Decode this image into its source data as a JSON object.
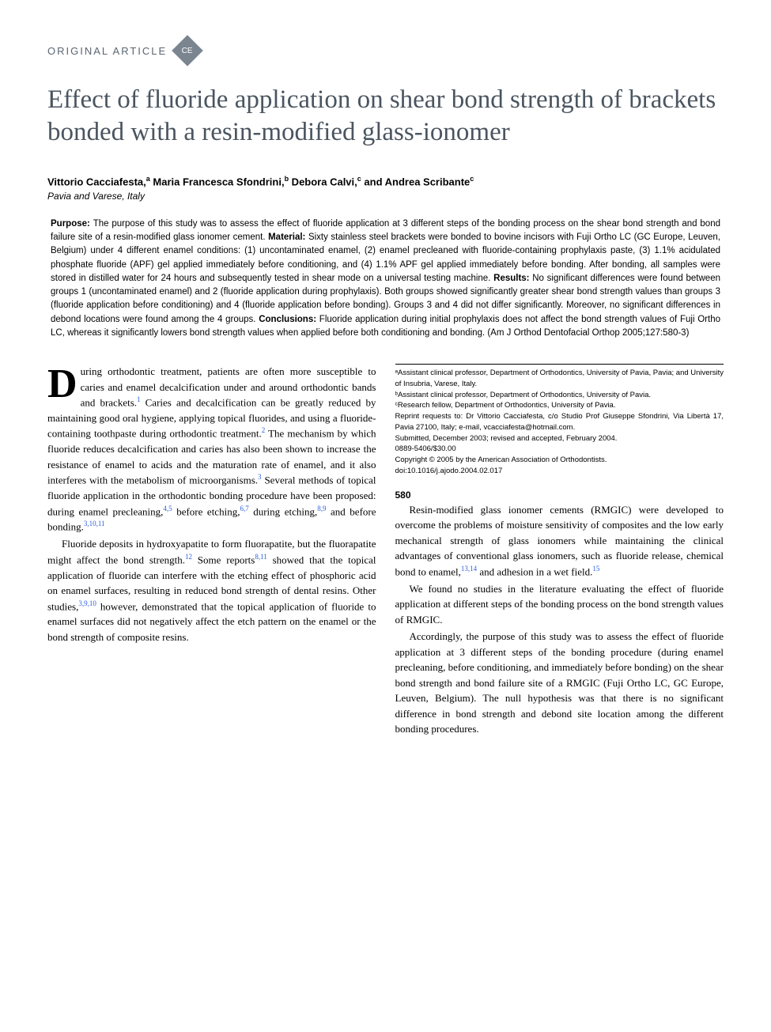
{
  "header": {
    "section_label": "ORIGINAL ARTICLE",
    "badge_text": "CE"
  },
  "title": "Effect of fluoride application on shear bond strength of brackets bonded with a resin-modified glass-ionomer",
  "authors_html": "Vittorio Cacciafesta,<sup>a</sup> Maria Francesca Sfondrini,<sup>b</sup> Debora Calvi,<sup>c</sup> and Andrea Scribante<sup>c</sup>",
  "location": "Pavia and Varese, Italy",
  "abstract": {
    "purpose_label": "Purpose: ",
    "purpose": "The purpose of this study was to assess the effect of fluoride application at 3 different steps of the bonding process on the shear bond strength and bond failure site of a resin-modified glass ionomer cement. ",
    "material_label": "Material: ",
    "material": "Sixty stainless steel brackets were bonded to bovine incisors with Fuji Ortho LC (GC Europe, Leuven, Belgium) under 4 different enamel conditions: (1) uncontaminated enamel, (2) enamel precleaned with fluoride-containing prophylaxis paste, (3) 1.1% acidulated phosphate fluoride (APF) gel applied immediately before conditioning, and (4) 1.1% APF gel applied immediately before bonding. After bonding, all samples were stored in distilled water for 24 hours and subsequently tested in shear mode on a universal testing machine. ",
    "results_label": "Results: ",
    "results": "No significant differences were found between groups 1 (uncontaminated enamel) and 2 (fluoride application during prophylaxis). Both groups showed significantly greater shear bond strength values than groups 3 (fluoride application before conditioning) and 4 (fluoride application before bonding). Groups 3 and 4 did not differ significantly. Moreover, no significant differences in debond locations were found among the 4 groups. ",
    "conclusions_label": "Conclusions: ",
    "conclusions": "Fluoride application during initial prophylaxis does not affect the bond strength values of Fuji Ortho LC, whereas it significantly lowers bond strength values when applied before both conditioning and bonding. (Am J Orthod Dentofacial Orthop 2005;127:580-3)"
  },
  "body": {
    "p1_html": "<span class=\"dropcap\">D</span>uring orthodontic treatment, patients are often more susceptible to caries and enamel decalcification under and around orthodontic bands and brackets.<sup class=\"ref\">1</sup> Caries and decalcification can be greatly reduced by maintaining good oral hygiene, applying topical fluorides, and using a fluoride-containing toothpaste during orthodontic treatment.<sup class=\"ref\">2</sup> The mechanism by which fluoride reduces decalcification and caries has also been shown to increase the resistance of enamel to acids and the maturation rate of enamel, and it also interferes with the metabolism of microorganisms.<sup class=\"ref\">3</sup> Several methods of topical fluoride application in the orthodontic bonding procedure have been proposed: during enamel precleaning,<sup class=\"ref\">4,5</sup> before etching,<sup class=\"ref\">6,7</sup> during etching,<sup class=\"ref\">8,9</sup> and before bonding.<sup class=\"ref\">3,10,11</sup>",
    "p2_html": "Fluoride deposits in hydroxyapatite to form fluorapatite, but the fluorapatite might affect the bond strength.<sup class=\"ref\">12</sup> Some reports<sup class=\"ref\">8,11</sup> showed that the topical application of fluoride can interfere with the etching effect of phosphoric acid on enamel surfaces, resulting in reduced bond strength of dental resins. Other studies,<sup class=\"ref\">3,9,10</sup> however, demonstrated that the topical application of fluoride to enamel surfaces did not negatively affect the etch pattern on the enamel or the bond strength of composite resins.",
    "p3_html": "Resin-modified glass ionomer cements (RMGIC) were developed to overcome the problems of moisture sensitivity of composites and the low early mechanical strength of glass ionomers while maintaining the clinical advantages of conventional glass ionomers, such as fluoride release, chemical bond to enamel,<sup class=\"ref\">13,14</sup> and adhesion in a wet field.<sup class=\"ref\">15</sup>",
    "p4": "We found no studies in the literature evaluating the effect of fluoride application at different steps of the bonding process on the bond strength values of RMGIC.",
    "p5": "Accordingly, the purpose of this study was to assess the effect of fluoride application at 3 different steps of the bonding procedure (during enamel precleaning, before conditioning, and immediately before bonding) on the shear bond strength and bond failure site of a RMGIC (Fuji Ortho LC, GC Europe, Leuven, Belgium). The null hypothesis was that there is no significant difference in bond strength and debond site location among the different bonding procedures."
  },
  "footnotes": {
    "a": "ᵃAssistant clinical professor, Department of Orthodontics, University of Pavia, Pavia; and University of Insubria, Varese, Italy.",
    "b": "ᵇAssistant clinical professor, Department of Orthodontics, University of Pavia.",
    "c": "ᶜResearch fellow, Department of Orthodontics, University of Pavia.",
    "reprint": "Reprint requests to: Dr Vittorio Cacciafesta, c/o Studio Prof Giuseppe Sfondrini, Via Libertà 17, Pavia 27100, Italy; e-mail, vcacciafesta@hotmail.com.",
    "submitted": "Submitted, December 2003; revised and accepted, February 2004.",
    "issn": "0889-5406/$30.00",
    "copyright": "Copyright © 2005 by the American Association of Orthodontists.",
    "doi": "doi:10.1016/j.ajodo.2004.02.017"
  },
  "page_number": "580"
}
